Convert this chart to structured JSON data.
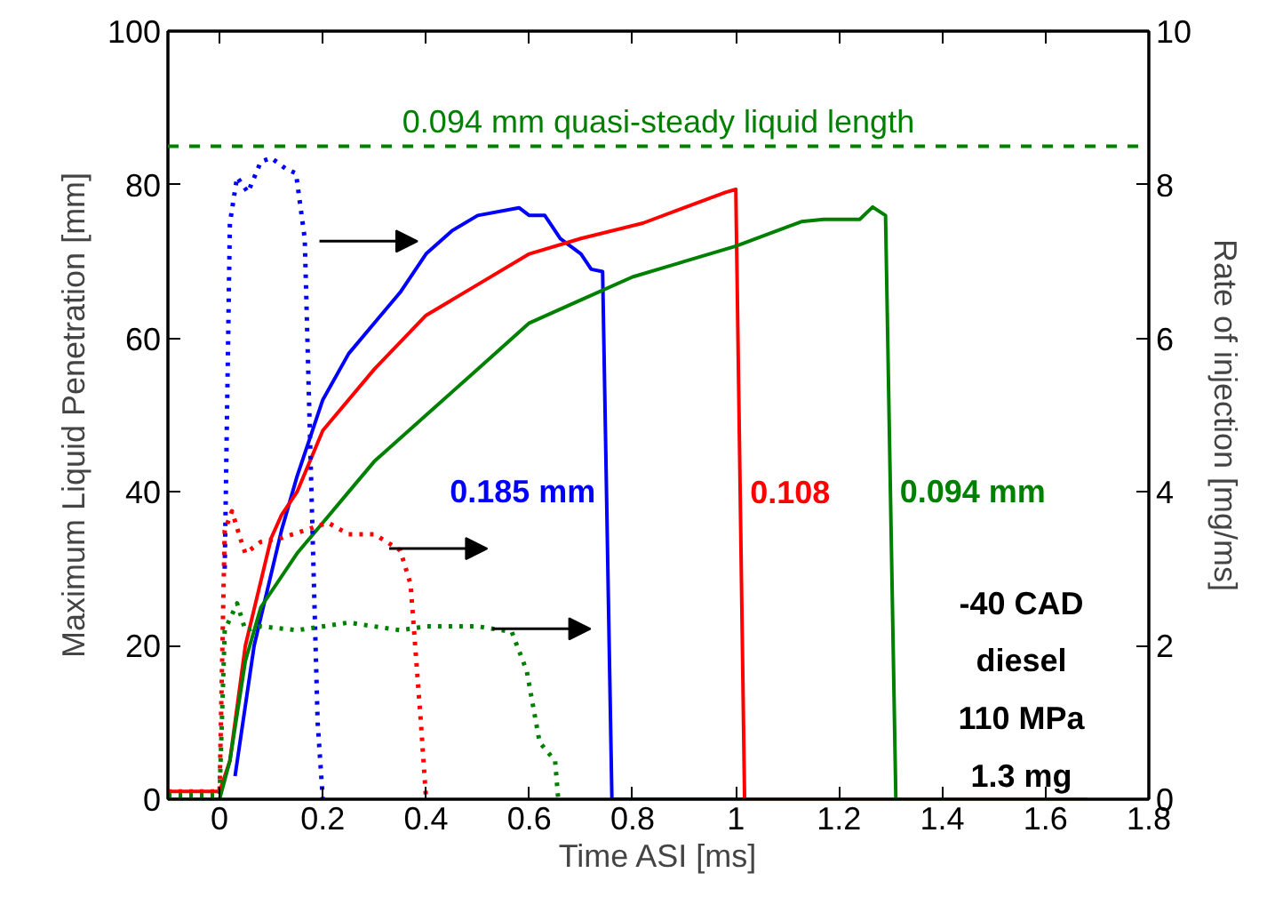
{
  "chart_data": {
    "type": "line",
    "xlabel": "Time ASI [ms]",
    "ylabel": "Maximum Liquid Penetration [mm]",
    "y2label": "Rate of injection [mg/ms]",
    "xlim": [
      -0.1,
      1.8
    ],
    "xticks": [
      0,
      0.2,
      0.4,
      0.6,
      0.8,
      1,
      1.2,
      1.4,
      1.6,
      1.8
    ],
    "ylim": [
      0,
      100
    ],
    "yticks": [
      0,
      20,
      40,
      60,
      80,
      100
    ],
    "y2lim": [
      0,
      10
    ],
    "y2ticks": [
      0,
      2,
      4,
      6,
      8,
      10
    ],
    "grid": false,
    "series": [
      {
        "name": "0.185 mm",
        "color": "#0000ff",
        "line_style": "solid",
        "x": [
          0.03,
          0.067,
          0.12,
          0.15,
          0.2,
          0.25,
          0.3,
          0.35,
          0.4,
          0.45,
          0.5,
          0.58,
          0.6,
          0.63,
          0.66,
          0.7,
          0.72,
          0.742,
          0.76,
          1.68
        ],
        "values": [
          3,
          20,
          35,
          42,
          52,
          58,
          62,
          66,
          71,
          74,
          76,
          77,
          76,
          76,
          73,
          71,
          69,
          68.7,
          0,
          0
        ]
      },
      {
        "name": "0.108",
        "color": "#ff0000",
        "line_style": "solid",
        "x": [
          -0.1,
          -0.05,
          0,
          0.02,
          0.05,
          0.1,
          0.12,
          0.15,
          0.2,
          0.3,
          0.4,
          0.5,
          0.6,
          0.7,
          0.82,
          0.9,
          0.98,
          1.0,
          1.017,
          1.68
        ],
        "values": [
          1,
          1,
          1,
          5,
          20,
          34,
          37,
          40,
          48,
          56,
          63,
          67,
          71,
          73,
          75,
          77,
          79,
          79.4,
          0,
          0
        ]
      },
      {
        "name": "0.094 mm",
        "color": "#008000",
        "line_style": "solid",
        "x": [
          -0.1,
          -0.05,
          0,
          0.02,
          0.05,
          0.08,
          0.15,
          0.2,
          0.25,
          0.3,
          0.4,
          0.5,
          0.6,
          0.7,
          0.8,
          0.9,
          1.0,
          1.127,
          1.17,
          1.24,
          1.265,
          1.29,
          1.31,
          1.68
        ],
        "values": [
          0,
          0,
          0,
          5,
          18,
          25,
          32,
          36,
          40,
          44,
          50,
          56,
          62,
          65,
          68,
          70,
          72,
          75.2,
          75.5,
          75.5,
          77.1,
          76,
          0,
          0
        ]
      },
      {
        "color": "#0000ff",
        "axis": "y2",
        "line_style": "dotted",
        "x": [
          0.01,
          0.02,
          0.034,
          0.055,
          0.08,
          0.1,
          0.13,
          0.148,
          0.165,
          0.18,
          0.19,
          0.2
        ],
        "values": [
          3,
          7.5,
          8.1,
          7.9,
          8.3,
          8.35,
          8.2,
          8.15,
          7.3,
          3.5,
          1,
          0
        ]
      },
      {
        "color": "#ff0000",
        "axis": "y2",
        "line_style": "dotted",
        "x": [
          -0.1,
          0,
          0.01,
          0.024,
          0.04,
          0.05,
          0.08,
          0.12,
          0.21,
          0.25,
          0.3,
          0.35,
          0.37,
          0.39,
          0.4
        ],
        "values": [
          0.1,
          0.1,
          3.5,
          3.75,
          3.4,
          3.2,
          3.35,
          3.4,
          3.6,
          3.45,
          3.45,
          3.24,
          2.8,
          1,
          0
        ]
      },
      {
        "color": "#008000",
        "axis": "y2",
        "line_style": "dotted",
        "x": [
          -0.1,
          0,
          0.01,
          0.034,
          0.05,
          0.08,
          0.15,
          0.25,
          0.35,
          0.4,
          0.5,
          0.566,
          0.595,
          0.62,
          0.65,
          0.656
        ],
        "values": [
          0.05,
          0.05,
          2.2,
          2.55,
          2.2,
          2.25,
          2.2,
          2.3,
          2.2,
          2.25,
          2.25,
          2.18,
          1.67,
          0.74,
          0.5,
          0
        ]
      }
    ],
    "ref_lines": [
      {
        "axis": "y",
        "value": 85,
        "label": "0.094 mm quasi-steady liquid length",
        "color": "#008000",
        "line_style": "dashed"
      }
    ],
    "annotations": [
      "-40 CAD",
      "diesel",
      "110 MPa",
      "1.3 mg"
    ]
  }
}
